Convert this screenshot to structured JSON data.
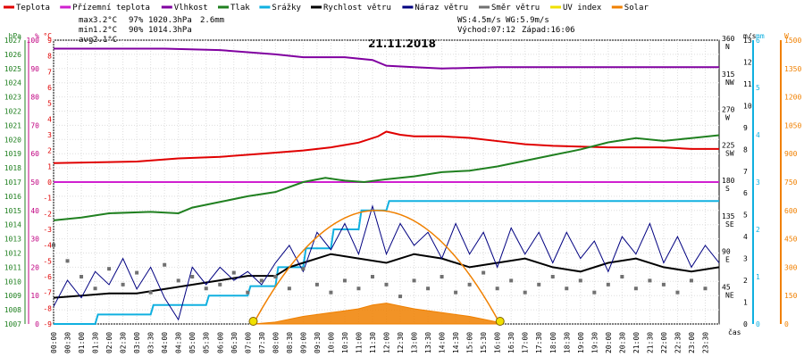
{
  "chart_data": {
    "type": "line",
    "title": "21.11.2018",
    "legend": [
      {
        "label": "Teplota",
        "color": "#e00000"
      },
      {
        "label": "Přízemní teplota",
        "color": "#d020d0"
      },
      {
        "label": "Vlhkost",
        "color": "#8000a0"
      },
      {
        "label": "Tlak",
        "color": "#208020"
      },
      {
        "label": "Srážky",
        "color": "#10b0e0"
      },
      {
        "label": "Rychlost větru",
        "color": "#000000"
      },
      {
        "label": "Náraz větru",
        "color": "#000080"
      },
      {
        "label": "Směr větru",
        "color": "#707070"
      },
      {
        "label": "UV index",
        "color": "#f0e000"
      },
      {
        "label": "Solar",
        "color": "#f08000"
      }
    ],
    "stats": {
      "max": {
        "label": "max",
        "temp": "3.2°C",
        "hum": "97%",
        "press": "1020.3hPa",
        "rain": "2.6mm"
      },
      "min": {
        "label": "min",
        "temp": "1.2°C",
        "hum": "90%",
        "press": "1014.3hPa"
      },
      "avg": {
        "label": "avg",
        "temp": "2.1°C"
      }
    },
    "info": {
      "ws": "WS:4.5m/s",
      "wg": "WG:5.9m/s",
      "sunrise": "Východ:07:12",
      "sunset": "Západ:16:06"
    },
    "axes": {
      "hpa": {
        "label": "hPa",
        "color": "#208020",
        "range": [
          1007,
          1027
        ],
        "ticks": [
          "1007",
          "1008",
          "1009",
          "1010",
          "1011",
          "1012",
          "1013",
          "1014",
          "1015",
          "1016",
          "1017",
          "1018",
          "1019",
          "1020",
          "1021",
          "1022",
          "1023",
          "1024",
          "1025",
          "1026",
          "1027"
        ]
      },
      "pct": {
        "label": "%",
        "color": "#c00080",
        "range": [
          0,
          100
        ],
        "ticks": [
          "0",
          "10",
          "20",
          "30",
          "40",
          "50",
          "60",
          "70",
          "80",
          "90",
          "100"
        ]
      },
      "degc": {
        "label": "°C",
        "color": "#e00000",
        "range": [
          -9,
          9
        ],
        "ticks": [
          "-9",
          "-8",
          "-7",
          "-6",
          "-5",
          "-4",
          "-3",
          "-2",
          "-1",
          "0",
          "1",
          "2",
          "3",
          "4",
          "5",
          "6",
          "7",
          "8",
          "9"
        ]
      },
      "dir": {
        "label": "",
        "color": "#000000",
        "ticks": [
          "",
          "45\nNE",
          "90\nE",
          "135\nSE",
          "180\nS",
          "225\nSW",
          "270\nW",
          "315\nNW",
          "360\nN"
        ]
      },
      "ms": {
        "label": "m/s",
        "color": "#000000",
        "range": [
          0,
          13
        ],
        "ticks": [
          "0",
          "1",
          "2",
          "3",
          "4",
          "5",
          "6",
          "7",
          "8",
          "9",
          "10",
          "11",
          "12",
          "13"
        ]
      },
      "mm": {
        "label": "mm",
        "color": "#10b0e0",
        "range": [
          0,
          6
        ],
        "ticks": [
          "0",
          "1",
          "2",
          "3",
          "4",
          "5",
          "6"
        ]
      },
      "w": {
        "label": "W",
        "color": "#f08000",
        "range": [
          0,
          1500
        ],
        "ticks": [
          "0",
          "150",
          "300",
          "450",
          "600",
          "750",
          "900",
          "1050",
          "1200",
          "1350",
          "1500"
        ]
      }
    },
    "x_label": "čas",
    "x_ticks": [
      "00:00",
      "00:30",
      "01:00",
      "01:30",
      "02:00",
      "02:30",
      "03:00",
      "03:30",
      "04:00",
      "04:30",
      "05:00",
      "05:30",
      "06:00",
      "06:30",
      "07:00",
      "07:30",
      "08:00",
      "08:30",
      "09:00",
      "09:30",
      "10:00",
      "10:30",
      "11:00",
      "11:30",
      "12:00",
      "12:30",
      "13:00",
      "13:30",
      "14:00",
      "14:30",
      "15:00",
      "15:30",
      "16:00",
      "16:30",
      "17:00",
      "17:30",
      "18:00",
      "18:30",
      "19:00",
      "19:30",
      "20:00",
      "20:30",
      "21:00",
      "21:30",
      "22:00",
      "22:30",
      "23:00",
      "23:30"
    ],
    "series": [
      {
        "name": "Teplota",
        "unit": "°C",
        "color": "#e00000",
        "points": [
          [
            0,
            1.2
          ],
          [
            3,
            1.3
          ],
          [
            4.5,
            1.5
          ],
          [
            6,
            1.6
          ],
          [
            7.5,
            1.8
          ],
          [
            9,
            2.0
          ],
          [
            10,
            2.2
          ],
          [
            11,
            2.5
          ],
          [
            11.7,
            2.9
          ],
          [
            12,
            3.2
          ],
          [
            12.5,
            3.0
          ],
          [
            13,
            2.9
          ],
          [
            14,
            2.9
          ],
          [
            15,
            2.8
          ],
          [
            16,
            2.6
          ],
          [
            17,
            2.4
          ],
          [
            18,
            2.3
          ],
          [
            20,
            2.2
          ],
          [
            22,
            2.2
          ],
          [
            23,
            2.1
          ],
          [
            24,
            2.1
          ]
        ]
      },
      {
        "name": "Přízemní teplota",
        "unit": "°C",
        "color": "#d020d0",
        "points": [
          [
            0,
            0.0
          ],
          [
            24,
            0.0
          ]
        ]
      },
      {
        "name": "Vlhkost",
        "unit": "%",
        "color": "#8000a0",
        "points": [
          [
            0,
            97
          ],
          [
            4,
            97
          ],
          [
            6,
            96.5
          ],
          [
            8,
            95
          ],
          [
            9,
            94
          ],
          [
            10.5,
            94
          ],
          [
            11.5,
            93
          ],
          [
            12,
            91
          ],
          [
            13,
            90.5
          ],
          [
            14,
            90
          ],
          [
            16,
            90.5
          ],
          [
            18,
            90.5
          ],
          [
            21,
            90.5
          ],
          [
            24,
            90.5
          ]
        ]
      },
      {
        "name": "Tlak",
        "unit": "hPa",
        "color": "#208020",
        "points": [
          [
            0,
            1014.3
          ],
          [
            1,
            1014.5
          ],
          [
            2,
            1014.8
          ],
          [
            3.5,
            1014.9
          ],
          [
            4.5,
            1014.8
          ],
          [
            5,
            1015.2
          ],
          [
            6,
            1015.6
          ],
          [
            7,
            1016.0
          ],
          [
            8,
            1016.3
          ],
          [
            9,
            1017.0
          ],
          [
            9.8,
            1017.3
          ],
          [
            10.5,
            1017.1
          ],
          [
            11.2,
            1017.0
          ],
          [
            12,
            1017.2
          ],
          [
            13,
            1017.4
          ],
          [
            14,
            1017.7
          ],
          [
            15,
            1017.8
          ],
          [
            16,
            1018.1
          ],
          [
            17,
            1018.5
          ],
          [
            18,
            1018.9
          ],
          [
            19,
            1019.3
          ],
          [
            20,
            1019.8
          ],
          [
            21,
            1020.1
          ],
          [
            22,
            1019.9
          ],
          [
            23,
            1020.1
          ],
          [
            24,
            1020.3
          ]
        ]
      },
      {
        "name": "Srážky",
        "unit": "mm",
        "color": "#10b0e0",
        "points": [
          [
            0,
            0
          ],
          [
            1.5,
            0
          ],
          [
            1.6,
            0.2
          ],
          [
            3.5,
            0.2
          ],
          [
            3.6,
            0.4
          ],
          [
            5.5,
            0.4
          ],
          [
            5.6,
            0.6
          ],
          [
            7,
            0.6
          ],
          [
            7.1,
            0.8
          ],
          [
            8,
            0.8
          ],
          [
            8.1,
            1.2
          ],
          [
            9,
            1.2
          ],
          [
            9.1,
            1.6
          ],
          [
            10,
            1.6
          ],
          [
            10.1,
            2.0
          ],
          [
            11,
            2.0
          ],
          [
            11.1,
            2.4
          ],
          [
            12,
            2.4
          ],
          [
            12.1,
            2.6
          ],
          [
            24,
            2.6
          ]
        ]
      },
      {
        "name": "Rychlost větru",
        "unit": "m/s",
        "color": "#000000",
        "points": [
          [
            0,
            1.2
          ],
          [
            1,
            1.3
          ],
          [
            2,
            1.4
          ],
          [
            3,
            1.4
          ],
          [
            4,
            1.6
          ],
          [
            5,
            1.8
          ],
          [
            6,
            2.0
          ],
          [
            7,
            2.2
          ],
          [
            8,
            2.2
          ],
          [
            8.5,
            2.6
          ],
          [
            9,
            2.8
          ],
          [
            10,
            3.2
          ],
          [
            11,
            3.0
          ],
          [
            12,
            2.8
          ],
          [
            13,
            3.2
          ],
          [
            14,
            3.0
          ],
          [
            15,
            2.6
          ],
          [
            16,
            2.8
          ],
          [
            17,
            3.0
          ],
          [
            18,
            2.6
          ],
          [
            19,
            2.4
          ],
          [
            20,
            2.8
          ],
          [
            21,
            3.0
          ],
          [
            22,
            2.6
          ],
          [
            23,
            2.4
          ],
          [
            24,
            2.6
          ]
        ]
      },
      {
        "name": "Náraz větru",
        "unit": "m/s",
        "color": "#000080",
        "points": [
          [
            0,
            0.8
          ],
          [
            0.5,
            2.0
          ],
          [
            1,
            1.2
          ],
          [
            1.5,
            2.4
          ],
          [
            2,
            1.8
          ],
          [
            2.5,
            3.0
          ],
          [
            3,
            1.6
          ],
          [
            3.5,
            2.6
          ],
          [
            4,
            1.2
          ],
          [
            4.5,
            0.2
          ],
          [
            5,
            2.6
          ],
          [
            5.5,
            1.8
          ],
          [
            6,
            2.6
          ],
          [
            6.5,
            2.0
          ],
          [
            7,
            2.4
          ],
          [
            7.5,
            1.8
          ],
          [
            8,
            2.8
          ],
          [
            8.5,
            3.6
          ],
          [
            9,
            2.4
          ],
          [
            9.5,
            4.2
          ],
          [
            10,
            3.4
          ],
          [
            10.5,
            4.6
          ],
          [
            11,
            3.2
          ],
          [
            11.5,
            5.4
          ],
          [
            12,
            3.2
          ],
          [
            12.5,
            4.6
          ],
          [
            13,
            3.6
          ],
          [
            13.5,
            4.2
          ],
          [
            14,
            3.0
          ],
          [
            14.5,
            4.6
          ],
          [
            15,
            3.2
          ],
          [
            15.5,
            4.2
          ],
          [
            16,
            2.6
          ],
          [
            16.5,
            4.4
          ],
          [
            17,
            3.2
          ],
          [
            17.5,
            4.2
          ],
          [
            18,
            2.8
          ],
          [
            18.5,
            4.2
          ],
          [
            19,
            3.0
          ],
          [
            19.5,
            3.8
          ],
          [
            20,
            2.4
          ],
          [
            20.5,
            4.0
          ],
          [
            21,
            3.2
          ],
          [
            21.5,
            4.6
          ],
          [
            22,
            2.8
          ],
          [
            22.5,
            4.0
          ],
          [
            23,
            2.6
          ],
          [
            23.5,
            3.6
          ],
          [
            24,
            2.8
          ]
        ]
      },
      {
        "name": "Směr větru",
        "unit": "°",
        "color": "#707070",
        "type": "scatter",
        "points": [
          [
            0,
            100
          ],
          [
            0.5,
            80
          ],
          [
            1,
            60
          ],
          [
            1.5,
            45
          ],
          [
            2,
            70
          ],
          [
            2.5,
            50
          ],
          [
            3,
            65
          ],
          [
            3.5,
            40
          ],
          [
            4,
            75
          ],
          [
            4.5,
            55
          ],
          [
            5,
            60
          ],
          [
            5.5,
            45
          ],
          [
            6,
            50
          ],
          [
            6.5,
            65
          ],
          [
            7,
            40
          ],
          [
            7.5,
            55
          ],
          [
            8,
            60
          ],
          [
            8.5,
            45
          ],
          [
            9,
            70
          ],
          [
            9.5,
            50
          ],
          [
            10,
            40
          ],
          [
            10.5,
            55
          ],
          [
            11,
            45
          ],
          [
            11.5,
            60
          ],
          [
            12,
            50
          ],
          [
            12.5,
            35
          ],
          [
            13,
            55
          ],
          [
            13.5,
            45
          ],
          [
            14,
            60
          ],
          [
            14.5,
            40
          ],
          [
            15,
            50
          ],
          [
            15.5,
            65
          ],
          [
            16,
            45
          ],
          [
            16.5,
            55
          ],
          [
            17,
            40
          ],
          [
            17.5,
            50
          ],
          [
            18,
            60
          ],
          [
            18.5,
            45
          ],
          [
            19,
            55
          ],
          [
            19.5,
            40
          ],
          [
            20,
            50
          ],
          [
            20.5,
            60
          ],
          [
            21,
            45
          ],
          [
            21.5,
            55
          ],
          [
            22,
            50
          ],
          [
            22.5,
            40
          ],
          [
            23,
            55
          ],
          [
            23.5,
            45
          ]
        ]
      },
      {
        "name": "Solar",
        "unit": "W",
        "color": "#f08000",
        "type": "area",
        "points": [
          [
            7.2,
            0
          ],
          [
            8,
            10
          ],
          [
            9,
            40
          ],
          [
            10,
            60
          ],
          [
            11,
            80
          ],
          [
            11.5,
            100
          ],
          [
            12,
            110
          ],
          [
            12.5,
            95
          ],
          [
            13,
            80
          ],
          [
            14,
            60
          ],
          [
            15,
            40
          ],
          [
            16,
            10
          ],
          [
            16.1,
            0
          ]
        ]
      }
    ],
    "sun_markers": [
      7.2,
      16.1
    ],
    "grid": true
  }
}
